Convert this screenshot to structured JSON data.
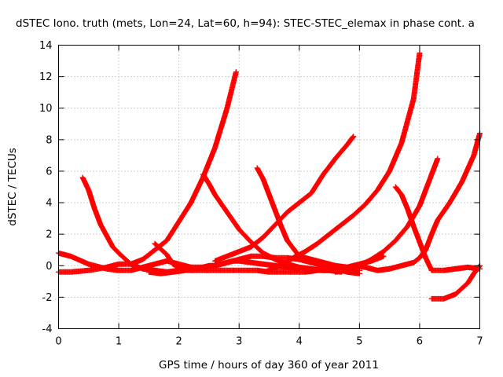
{
  "chart_data": {
    "type": "scatter",
    "title": "dSTEC Iono. truth (mets, Lon=24, Lat=60, h=94): STEC-STEC_elemax in phase cont. a",
    "xlabel": "GPS time / hours of day 360 of year 2011",
    "ylabel": "dSTEC  / TECUs",
    "xlim": [
      0,
      7
    ],
    "ylim": [
      -4,
      14
    ],
    "xticks": [
      0,
      1,
      2,
      3,
      4,
      5,
      6,
      7
    ],
    "yticks": [
      -4,
      -2,
      0,
      2,
      4,
      6,
      8,
      10,
      12,
      14
    ],
    "grid": true,
    "marker": "plus",
    "series_color": "#ff0000",
    "series": [
      {
        "x": [
          0.0,
          0.2,
          0.5,
          0.8,
          1.0,
          1.2,
          1.4,
          1.6,
          1.8,
          2.0,
          2.2,
          2.4,
          2.6,
          2.8,
          2.95
        ],
        "y": [
          -0.4,
          -0.4,
          -0.3,
          -0.1,
          0.1,
          0.1,
          0.4,
          1.0,
          1.6,
          2.8,
          4.0,
          5.6,
          7.5,
          10.0,
          12.3
        ]
      },
      {
        "x": [
          0.4,
          0.5,
          0.6,
          0.7,
          0.8,
          0.9,
          1.0,
          1.2,
          1.4,
          1.6,
          1.8,
          2.0,
          2.2
        ],
        "y": [
          5.6,
          4.8,
          3.6,
          2.6,
          1.9,
          1.2,
          0.8,
          0.1,
          -0.2,
          -0.3,
          -0.4,
          -0.3,
          -0.2
        ]
      },
      {
        "x": [
          0.0,
          0.2,
          0.5,
          0.8,
          1.0,
          1.2,
          1.4,
          1.6,
          1.8,
          2.0,
          2.2,
          2.4,
          2.6,
          2.8,
          3.0,
          3.2,
          3.4,
          3.6,
          3.8,
          4.0,
          4.2,
          4.4,
          4.6,
          4.8,
          5.0
        ],
        "y": [
          0.8,
          0.6,
          0.1,
          -0.2,
          -0.3,
          -0.3,
          -0.1,
          0.1,
          0.3,
          0.1,
          -0.1,
          -0.1,
          0.0,
          0.2,
          0.4,
          0.6,
          0.6,
          0.5,
          0.5,
          0.4,
          0.2,
          0.0,
          -0.2,
          -0.4,
          -0.5
        ]
      },
      {
        "x": [
          1.5,
          1.7,
          1.9,
          2.1,
          2.3,
          2.5,
          2.7,
          2.9,
          3.1,
          3.3,
          3.5,
          3.7,
          3.9,
          4.1,
          4.3,
          4.5,
          4.7
        ],
        "y": [
          -0.4,
          -0.5,
          -0.4,
          -0.3,
          -0.3,
          -0.3,
          -0.3,
          -0.3,
          -0.3,
          -0.3,
          -0.4,
          -0.4,
          -0.4,
          -0.4,
          -0.3,
          -0.3,
          -0.4
        ]
      },
      {
        "x": [
          1.6,
          1.8,
          1.9,
          2.0,
          2.1,
          2.2,
          2.3,
          2.4,
          2.5,
          2.6,
          2.7,
          2.8,
          2.9,
          3.0,
          3.2,
          3.4,
          3.6,
          3.8,
          4.0
        ],
        "y": [
          1.4,
          0.7,
          0.1,
          -0.1,
          -0.2,
          -0.2,
          -0.2,
          -0.1,
          0.0,
          0.0,
          0.1,
          0.2,
          0.3,
          0.3,
          0.2,
          0.1,
          0.0,
          -0.1,
          -0.2
        ]
      },
      {
        "x": [
          2.4,
          2.5,
          2.6,
          2.8,
          3.0,
          3.2,
          3.4,
          3.6,
          3.8,
          4.0,
          4.2,
          4.4,
          4.6,
          4.8,
          5.0
        ],
        "y": [
          5.8,
          5.2,
          4.5,
          3.4,
          2.3,
          1.5,
          0.8,
          0.4,
          0.1,
          -0.1,
          -0.2,
          -0.3,
          -0.3,
          -0.3,
          -0.3
        ]
      },
      {
        "x": [
          2.6,
          2.8,
          3.0,
          3.2,
          3.4,
          3.6,
          3.8,
          4.0,
          4.2,
          4.4,
          4.6,
          4.8,
          4.9
        ],
        "y": [
          0.3,
          0.6,
          0.9,
          1.2,
          1.8,
          2.6,
          3.4,
          4.0,
          4.6,
          5.8,
          6.8,
          7.7,
          8.2
        ]
      },
      {
        "x": [
          3.3,
          3.4,
          3.5,
          3.6,
          3.7,
          3.8,
          4.0,
          4.2,
          4.4,
          4.6,
          4.8,
          5.0,
          5.2,
          5.4
        ],
        "y": [
          6.2,
          5.5,
          4.5,
          3.5,
          2.5,
          1.6,
          0.6,
          0.4,
          0.2,
          0.0,
          -0.1,
          0.1,
          0.3,
          0.6
        ]
      },
      {
        "x": [
          3.5,
          3.7,
          3.9,
          4.1,
          4.3,
          4.5,
          4.7,
          4.9,
          5.1,
          5.3,
          5.5,
          5.7,
          5.9,
          6.0
        ],
        "y": [
          -0.2,
          0.0,
          0.5,
          0.9,
          1.4,
          2.0,
          2.6,
          3.2,
          3.9,
          4.8,
          6.0,
          7.8,
          10.6,
          13.5
        ]
      },
      {
        "x": [
          4.6,
          4.8,
          5.0,
          5.2,
          5.4,
          5.6,
          5.8,
          6.0,
          6.2,
          6.3
        ],
        "y": [
          -0.4,
          -0.3,
          0.0,
          0.4,
          0.9,
          1.6,
          2.5,
          3.8,
          5.8,
          6.8
        ]
      },
      {
        "x": [
          4.7,
          4.9,
          5.1,
          5.3,
          5.5,
          5.7,
          5.9,
          6.0,
          6.1,
          6.2,
          6.3,
          6.5,
          6.7,
          6.9,
          7.0
        ],
        "y": [
          -0.2,
          0.0,
          -0.1,
          -0.3,
          -0.2,
          0.0,
          0.2,
          0.5,
          1.0,
          2.0,
          2.9,
          4.0,
          5.3,
          7.0,
          8.4
        ]
      },
      {
        "x": [
          5.6,
          5.7,
          5.8,
          5.9,
          6.0,
          6.1,
          6.2,
          6.4,
          6.6,
          6.8,
          7.0
        ],
        "y": [
          5.0,
          4.5,
          3.6,
          2.5,
          1.5,
          0.5,
          -0.3,
          -0.3,
          -0.2,
          -0.1,
          -0.2
        ]
      },
      {
        "x": [
          6.2,
          6.4,
          6.6,
          6.8,
          6.9,
          7.0
        ],
        "y": [
          -2.1,
          -2.1,
          -1.8,
          -1.1,
          -0.5,
          0.0
        ]
      }
    ]
  }
}
